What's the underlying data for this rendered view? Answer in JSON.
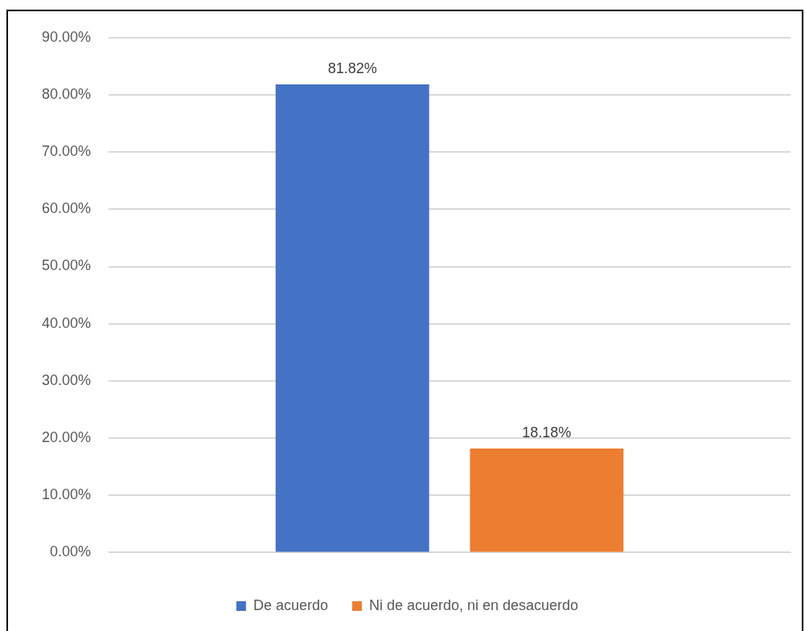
{
  "chart_data": {
    "type": "bar",
    "categories": [
      null
    ],
    "series": [
      {
        "name": "De acuerdo",
        "color": "#4472c4",
        "values": [
          81.82
        ],
        "value_labels": [
          "81.82%"
        ]
      },
      {
        "name": "Ni de acuerdo, ni en desacuerdo",
        "color": "#ed7d31",
        "values": [
          18.18
        ],
        "value_labels": [
          "18.18%"
        ]
      }
    ],
    "ylim": [
      0,
      90
    ],
    "yticks": [
      {
        "value": 0,
        "label": "0.00%"
      },
      {
        "value": 10,
        "label": "10.00%"
      },
      {
        "value": 20,
        "label": "20.00%"
      },
      {
        "value": 30,
        "label": "30.00%"
      },
      {
        "value": 40,
        "label": "40.00%"
      },
      {
        "value": 50,
        "label": "50.00%"
      },
      {
        "value": 60,
        "label": "60.00%"
      },
      {
        "value": 70,
        "label": "70.00%"
      },
      {
        "value": 80,
        "label": "80.00%"
      },
      {
        "value": 90,
        "label": "90.00%"
      }
    ],
    "grid": "y",
    "legend": "bottom"
  }
}
